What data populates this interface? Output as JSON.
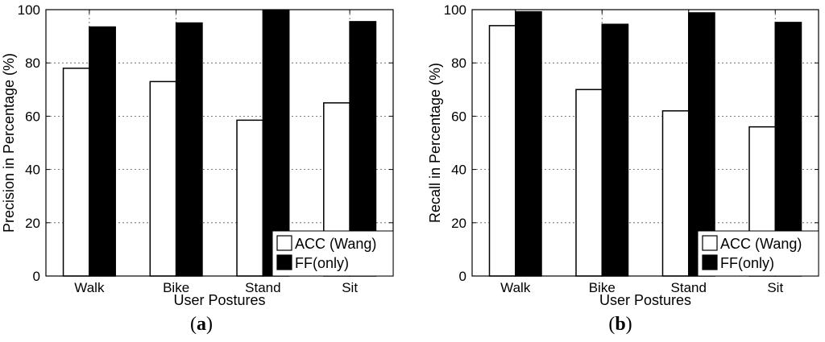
{
  "chart_data": [
    {
      "type": "bar",
      "caption": "a",
      "categories": [
        "Walk",
        "Bike",
        "Stand",
        "Sit"
      ],
      "series": [
        {
          "name": "ACC (Wang)",
          "values": [
            78,
            73,
            58.5,
            65
          ],
          "color": "#ffffff"
        },
        {
          "name": "FF(only)",
          "values": [
            93.5,
            95,
            99.8,
            95.5
          ],
          "color": "#000000"
        }
      ],
      "xlabel": "User Postures",
      "ylabel": "Precision in Percentage (%)",
      "ylim": [
        0,
        100
      ],
      "yticks": [
        "0",
        "20",
        "40",
        "60",
        "80",
        "100"
      ],
      "grid": true,
      "legend_position": "bottom-right"
    },
    {
      "type": "bar",
      "caption": "b",
      "categories": [
        "Walk",
        "Bike",
        "Stand",
        "Sit"
      ],
      "series": [
        {
          "name": "ACC (Wang)",
          "values": [
            94,
            70,
            62,
            56
          ],
          "color": "#ffffff"
        },
        {
          "name": "FF(only)",
          "values": [
            99.2,
            94.5,
            98.8,
            95.2
          ],
          "color": "#000000"
        }
      ],
      "xlabel": "User Postures",
      "ylabel": "Recall in Percentage (%)",
      "ylim": [
        0,
        100
      ],
      "yticks": [
        "0",
        "20",
        "40",
        "60",
        "80",
        "100"
      ],
      "grid": true,
      "legend_position": "bottom-right"
    }
  ]
}
